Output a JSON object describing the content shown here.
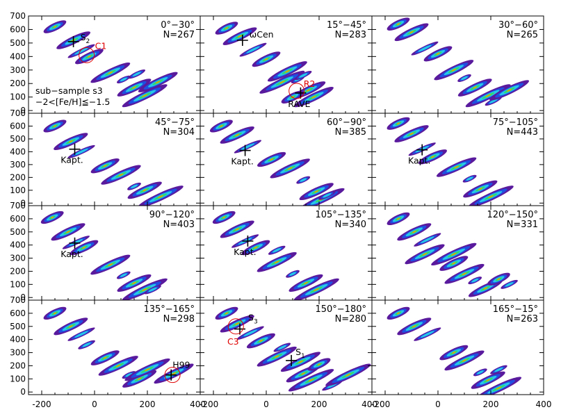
{
  "chart_data": {
    "type": "contour-grid",
    "xlim": [
      -250,
      400
    ],
    "ylim": [
      -20,
      700
    ],
    "x_ticks": [
      -200,
      0,
      200,
      400
    ],
    "y_ticks": [
      0,
      100,
      200,
      300,
      400,
      500,
      600,
      700
    ],
    "colors": [
      "#5a1a9e",
      "#1f4fe0",
      "#28c8e8",
      "#30d870",
      "#f0a000"
    ],
    "marker_color": "#000000",
    "circle_color": "#e00000",
    "panels": [
      {
        "range": "0°−30°",
        "n": "N=267",
        "blobs": [
          [
            -150,
            620
          ],
          [
            -80,
            520
          ],
          [
            -50,
            440
          ],
          [
            -20,
            400
          ],
          [
            60,
            280
          ],
          [
            110,
            230
          ],
          [
            150,
            170
          ],
          [
            190,
            110
          ],
          [
            160,
            270
          ],
          [
            240,
            210
          ]
        ],
        "markers": [
          {
            "x": -80,
            "y": 510,
            "label": "S",
            "sub": "2"
          }
        ],
        "circles": [
          {
            "x": -30,
            "y": 410,
            "label": "C1"
          }
        ],
        "notes": [
          "sub−sample s3",
          "−2<[Fe/H]≦−1.5"
        ]
      },
      {
        "range": "15°−45°",
        "n": "N=283",
        "blobs": [
          [
            -150,
            610
          ],
          [
            -100,
            550
          ],
          [
            -50,
            450
          ],
          [
            0,
            380
          ],
          [
            80,
            290
          ],
          [
            120,
            230
          ],
          [
            160,
            150
          ],
          [
            60,
            210
          ],
          [
            140,
            260
          ],
          [
            180,
            100
          ],
          [
            100,
            100
          ]
        ],
        "markers": [
          {
            "x": -90,
            "y": 520,
            "label": "ωCen",
            "sub": ""
          },
          {
            "x": 130,
            "y": 130,
            "label": "RAVE",
            "sub": ""
          }
        ],
        "circles": [
          {
            "x": 115,
            "y": 145,
            "label": "R2"
          }
        ]
      },
      {
        "range": "30°−60°",
        "n": "N=265",
        "blobs": [
          [
            -150,
            640
          ],
          [
            -100,
            580
          ],
          [
            -50,
            460
          ],
          [
            0,
            420
          ],
          [
            60,
            300
          ],
          [
            100,
            240
          ],
          [
            140,
            170
          ],
          [
            190,
            110
          ],
          [
            210,
            70
          ],
          [
            270,
            150
          ]
        ],
        "markers": [],
        "circles": []
      },
      {
        "range": "45°−75°",
        "n": "N=304",
        "blobs": [
          [
            -150,
            600
          ],
          [
            -90,
            480
          ],
          [
            -50,
            400
          ],
          [
            40,
            290
          ],
          [
            100,
            220
          ],
          [
            150,
            130
          ],
          [
            190,
            100
          ],
          [
            250,
            50
          ]
        ],
        "markers": [
          {
            "x": -75,
            "y": 420,
            "label": "Kapt.",
            "sub": ""
          }
        ],
        "circles": []
      },
      {
        "range": "60°−90°",
        "n": "N=385",
        "blobs": [
          [
            -170,
            600
          ],
          [
            -110,
            530
          ],
          [
            -70,
            440
          ],
          [
            20,
            340
          ],
          [
            90,
            270
          ],
          [
            140,
            180
          ],
          [
            190,
            90
          ],
          [
            210,
            30
          ],
          [
            230,
            60
          ]
        ],
        "markers": [
          {
            "x": -80,
            "y": 410,
            "label": "Kapt.",
            "sub": ""
          }
        ],
        "circles": []
      },
      {
        "range": "75°−105°",
        "n": "N=443",
        "blobs": [
          [
            -150,
            620
          ],
          [
            -100,
            540
          ],
          [
            -60,
            420
          ],
          [
            -20,
            360
          ],
          [
            70,
            280
          ],
          [
            120,
            190
          ],
          [
            160,
            110
          ],
          [
            200,
            50
          ]
        ],
        "markers": [
          {
            "x": -60,
            "y": 415,
            "label": "Kapt.",
            "sub": ""
          }
        ],
        "circles": []
      },
      {
        "range": "90°−120°",
        "n": "N=403",
        "blobs": [
          [
            -160,
            610
          ],
          [
            -100,
            500
          ],
          [
            -70,
            420
          ],
          [
            -40,
            380
          ],
          [
            60,
            250
          ],
          [
            110,
            170
          ],
          [
            150,
            110
          ],
          [
            190,
            60
          ],
          [
            220,
            60
          ]
        ],
        "markers": [
          {
            "x": -75,
            "y": 415,
            "label": "Kapt.",
            "sub": ""
          }
        ],
        "circles": []
      },
      {
        "range": "105°−135°",
        "n": "N=340",
        "blobs": [
          [
            -160,
            610
          ],
          [
            -110,
            520
          ],
          [
            -80,
            430
          ],
          [
            -40,
            380
          ],
          [
            40,
            270
          ],
          [
            100,
            180
          ],
          [
            150,
            110
          ],
          [
            190,
            60
          ],
          [
            40,
            360
          ]
        ],
        "markers": [
          {
            "x": -70,
            "y": 430,
            "label": "Kapt.",
            "sub": ""
          }
        ],
        "circles": []
      },
      {
        "range": "120°−150°",
        "n": "N=331",
        "blobs": [
          [
            -150,
            600
          ],
          [
            -90,
            500
          ],
          [
            -40,
            440
          ],
          [
            60,
            260
          ],
          [
            100,
            180
          ],
          [
            140,
            130
          ],
          [
            180,
            70
          ],
          [
            60,
            330
          ],
          [
            270,
            100
          ],
          [
            -50,
            330
          ],
          [
            230,
            140
          ]
        ],
        "markers": [],
        "circles": []
      },
      {
        "range": "135°−165°",
        "n": "N=298",
        "blobs": [
          [
            -150,
            600
          ],
          [
            -90,
            500
          ],
          [
            -50,
            440
          ],
          [
            40,
            260
          ],
          [
            90,
            200
          ],
          [
            130,
            130
          ],
          [
            170,
            100
          ],
          [
            200,
            170
          ],
          [
            -30,
            360
          ],
          [
            300,
            140
          ]
        ],
        "markers": [
          {
            "x": 290,
            "y": 130,
            "label": "H99",
            "sub": ""
          }
        ],
        "circles": [
          {
            "x": 295,
            "y": 130
          }
        ]
      },
      {
        "range": "150°−180°",
        "n": "N=280",
        "blobs": [
          [
            -150,
            600
          ],
          [
            -110,
            520
          ],
          [
            -60,
            450
          ],
          [
            -20,
            390
          ],
          [
            40,
            270
          ],
          [
            100,
            200
          ],
          [
            140,
            140
          ],
          [
            170,
            90
          ],
          [
            60,
            340
          ],
          [
            130,
            230
          ],
          [
            200,
            210
          ],
          [
            250,
            50
          ],
          [
            310,
            130
          ]
        ],
        "markers": [
          {
            "x": -100,
            "y": 480,
            "label": "S",
            "sub": "3"
          },
          {
            "x": 95,
            "y": 240,
            "label": "S",
            "sub": "1"
          }
        ],
        "circles": [
          {
            "x": -115,
            "y": 500,
            "label": "C3"
          }
        ]
      },
      {
        "range": "165°−15°",
        "n": "N=263",
        "blobs": [
          [
            -150,
            600
          ],
          [
            -90,
            500
          ],
          [
            -40,
            440
          ],
          [
            60,
            300
          ],
          [
            100,
            240
          ],
          [
            160,
            150
          ],
          [
            190,
            90
          ],
          [
            230,
            30
          ],
          [
            230,
            170
          ]
        ],
        "markers": [],
        "circles": []
      }
    ]
  }
}
